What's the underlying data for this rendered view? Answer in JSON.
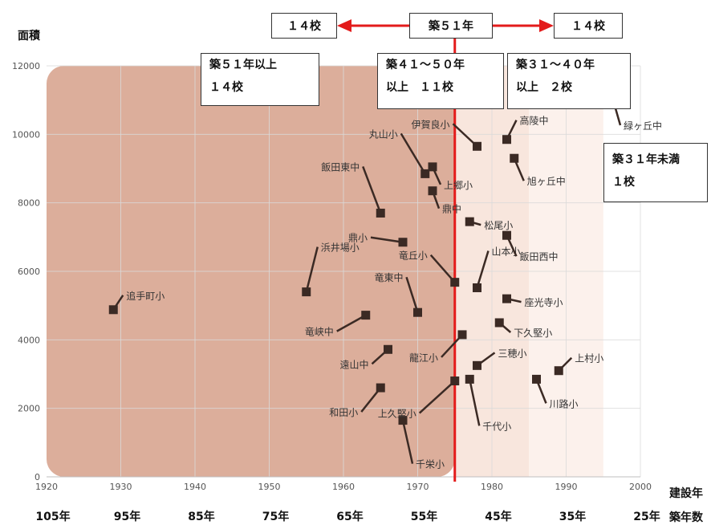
{
  "chart_data": {
    "type": "scatter",
    "ylabel": "面積",
    "xlabel": "建設年",
    "x2label": "築年数",
    "xlim": [
      1920,
      2000
    ],
    "ylim": [
      0,
      12000
    ],
    "x_ticks": [
      1920,
      1930,
      1940,
      1950,
      1960,
      1970,
      1980,
      1990,
      2000
    ],
    "y_ticks": [
      0,
      2000,
      4000,
      6000,
      8000,
      10000,
      12000
    ],
    "age_labels": [
      "105年",
      "95年",
      "85年",
      "75年",
      "65年",
      "55年",
      "45年",
      "35年",
      "25年"
    ],
    "reference_line_x": 1975,
    "reference_line_color": "#e31b1b",
    "point_color": "#3b2a24",
    "zones": [
      {
        "from": 1920,
        "to": 1975,
        "color": "#dcae9b"
      },
      {
        "from": 1975,
        "to": 1985,
        "color": "#f8e6dd"
      },
      {
        "from": 1985,
        "to": 1995,
        "color": "#fcf1ec"
      }
    ],
    "points": [
      {
        "name": "追手町小",
        "year": 1929,
        "area": 4880
      },
      {
        "name": "浜井場小",
        "year": 1955,
        "area": 5400
      },
      {
        "name": "竜峡中",
        "year": 1963,
        "area": 4720
      },
      {
        "name": "遠山中",
        "year": 1966,
        "area": 3720
      },
      {
        "name": "和田小",
        "year": 1965,
        "area": 2600
      },
      {
        "name": "千栄小",
        "year": 1968,
        "area": 1650
      },
      {
        "name": "竜東中",
        "year": 1970,
        "area": 4800
      },
      {
        "name": "鼎小",
        "year": 1968,
        "area": 6850
      },
      {
        "name": "飯田東中",
        "year": 1965,
        "area": 7700
      },
      {
        "name": "丸山小",
        "year": 1971,
        "area": 8850
      },
      {
        "name": "上郷小",
        "year": 1972,
        "area": 9050
      },
      {
        "name": "鼎中",
        "year": 1972,
        "area": 8350
      },
      {
        "name": "竜丘小",
        "year": 1975,
        "area": 5680
      },
      {
        "name": "上久堅小",
        "year": 1975,
        "area": 2800
      },
      {
        "name": "龍江小",
        "year": 1976,
        "area": 4150
      },
      {
        "name": "千代小",
        "year": 1977,
        "area": 2850
      },
      {
        "name": "三穂小",
        "year": 1978,
        "area": 3250
      },
      {
        "name": "山本小",
        "year": 1978,
        "area": 5520
      },
      {
        "name": "松尾小",
        "year": 1977,
        "area": 7450
      },
      {
        "name": "伊賀良小",
        "year": 1978,
        "area": 9650
      },
      {
        "name": "高陵中",
        "year": 1982,
        "area": 9850
      },
      {
        "name": "旭ヶ丘中",
        "year": 1983,
        "area": 9300
      },
      {
        "name": "飯田西中",
        "year": 1982,
        "area": 7050
      },
      {
        "name": "座光寺小",
        "year": 1982,
        "area": 5200
      },
      {
        "name": "下久堅小",
        "year": 1981,
        "area": 4500
      },
      {
        "name": "川路小",
        "year": 1986,
        "area": 2850
      },
      {
        "name": "上村小",
        "year": 1989,
        "area": 3100
      },
      {
        "name": "緑ヶ丘中",
        "year": 1996,
        "area": 11250
      }
    ]
  },
  "boxes": {
    "top_left": "１４校",
    "top_center": "築５１年",
    "top_right": "１４校",
    "zone51_line1": "築５１年以上",
    "zone51_line2": "１４校",
    "zone41_line1": "築４１～５０年",
    "zone41_line2": "以上　１１校",
    "zone31_line1": "築３１～４０年",
    "zone31_line2": "以上　２校",
    "zone_under31_line1": "築３１年未満",
    "zone_under31_line2": "１校"
  }
}
